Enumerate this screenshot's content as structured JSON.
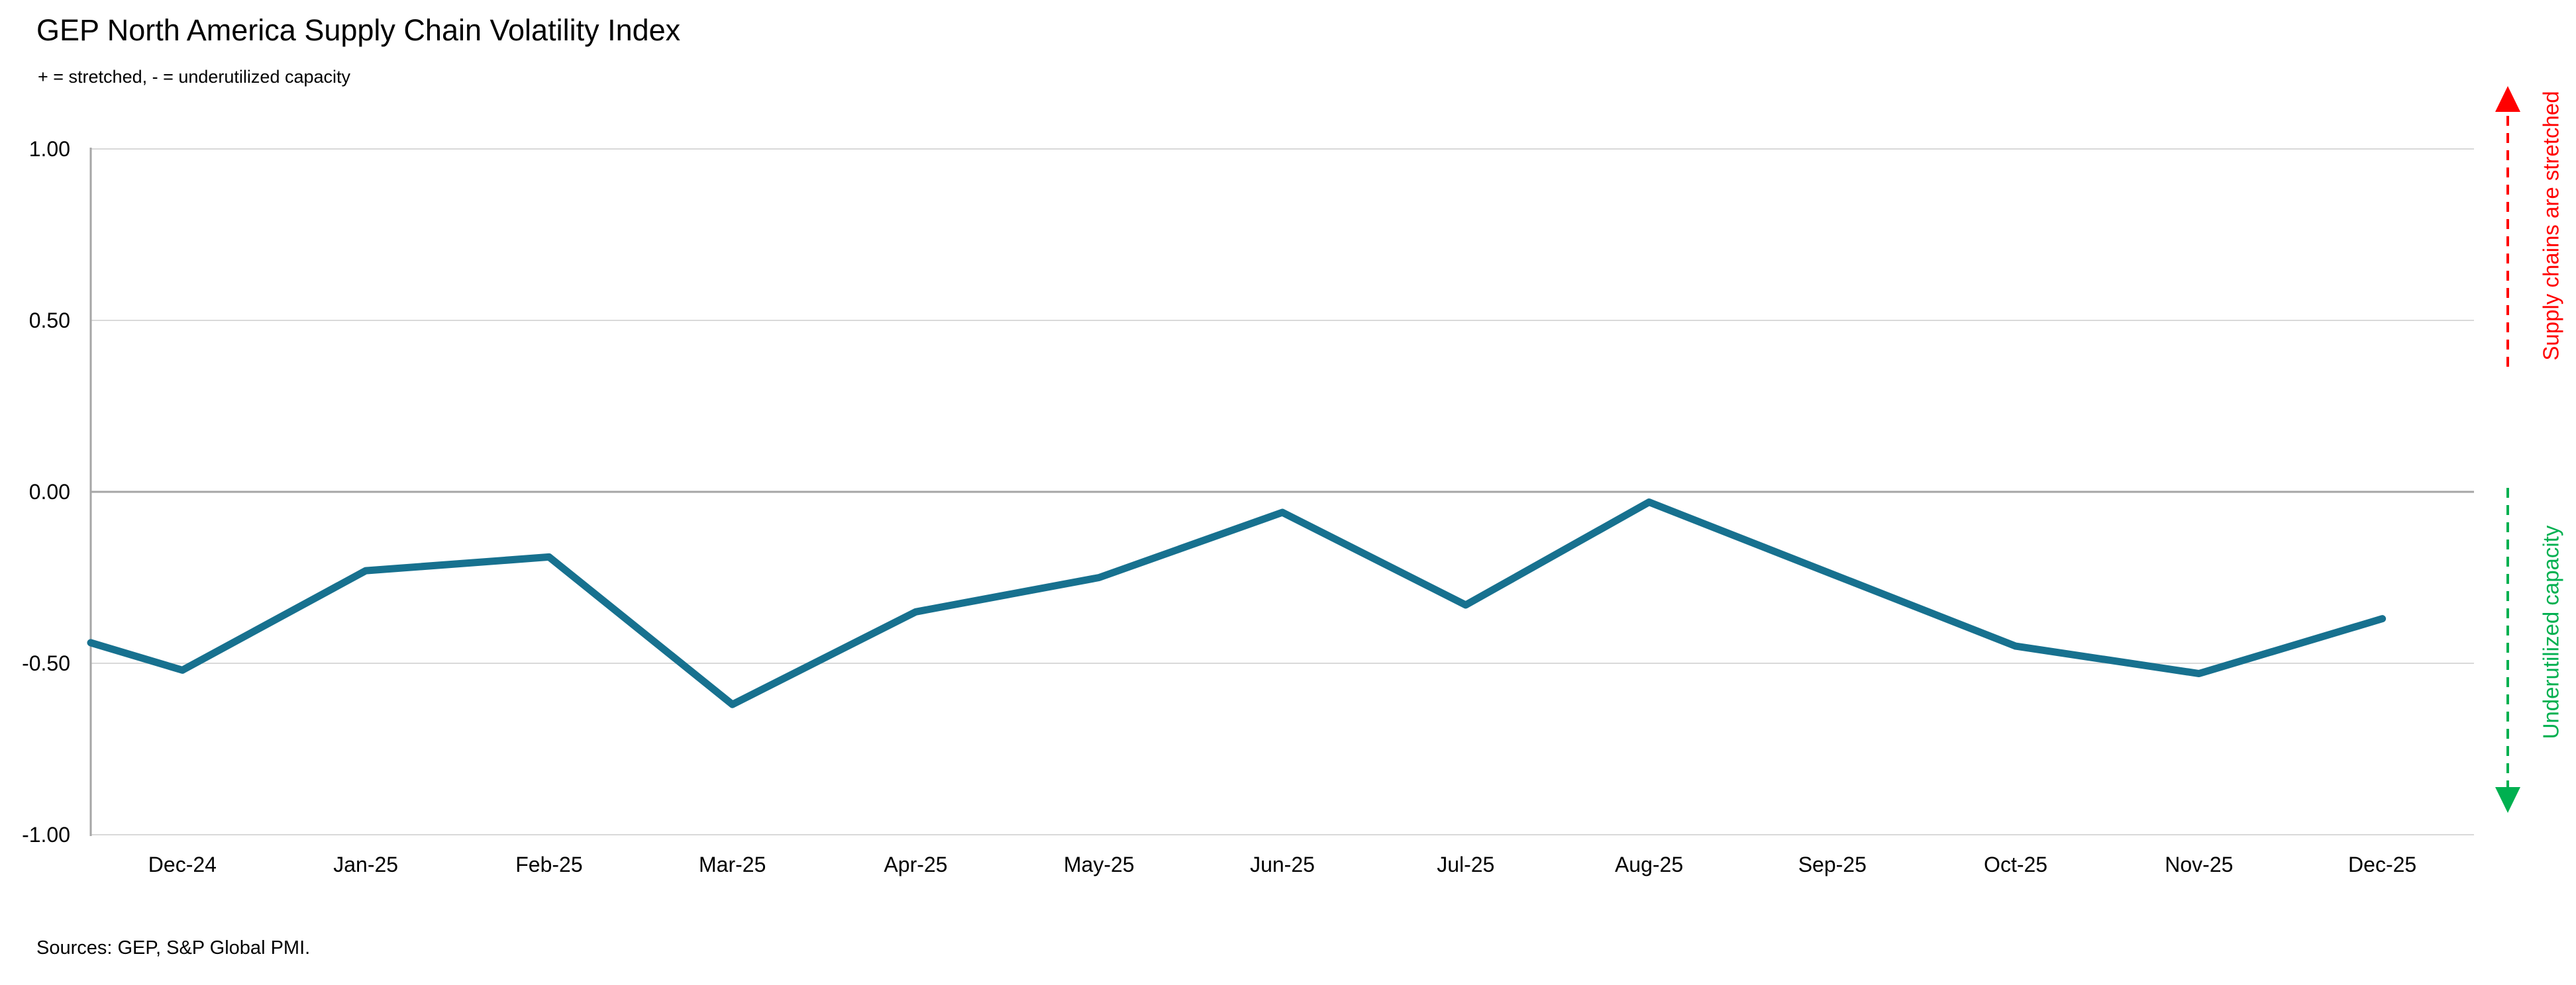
{
  "header": {
    "title": "GEP North America Supply Chain Volatility Index",
    "subtitle": "+ = stretched, - = underutilized capacity"
  },
  "footer": {
    "sources": "Sources: GEP, S&P Global PMI."
  },
  "annotations": {
    "stretched": {
      "label": "Supply chains are stretched",
      "color": "#ff0000",
      "direction": "up"
    },
    "underutilized": {
      "label": "Underutilized capacity",
      "color": "#00b050",
      "direction": "down"
    }
  },
  "chart_data": {
    "type": "line",
    "title": "GEP North America Supply Chain Volatility Index",
    "subtitle": "+ = stretched, - = underutilized capacity",
    "categories": [
      "Dec-24",
      "Jan-25",
      "Feb-25",
      "Mar-25",
      "Apr-25",
      "May-25",
      "Jun-25",
      "Jul-25",
      "Aug-25",
      "Sep-25",
      "Oct-25",
      "Nov-25",
      "Dec-25"
    ],
    "values": [
      -0.52,
      -0.23,
      -0.19,
      -0.62,
      -0.35,
      -0.25,
      -0.06,
      -0.33,
      -0.03,
      -0.24,
      -0.45,
      -0.53,
      -0.37
    ],
    "left_edge_start_value": -0.44,
    "ylim": [
      -1.0,
      1.0
    ],
    "yticks": [
      {
        "v": 1.0,
        "label": "1.00"
      },
      {
        "v": 0.5,
        "label": "0.50"
      },
      {
        "v": 0.0,
        "label": "0.00"
      },
      {
        "v": -0.5,
        "label": "-0.50"
      },
      {
        "v": -1.0,
        "label": "-1.00"
      }
    ],
    "xlabel": "",
    "ylabel": "",
    "grid": true,
    "legend": "none",
    "line_color": "#17718f",
    "zero_line_color": "#a6a6a6",
    "axis_line_color": "#a6a6a6",
    "gridline_color": "#d9d9d9"
  }
}
